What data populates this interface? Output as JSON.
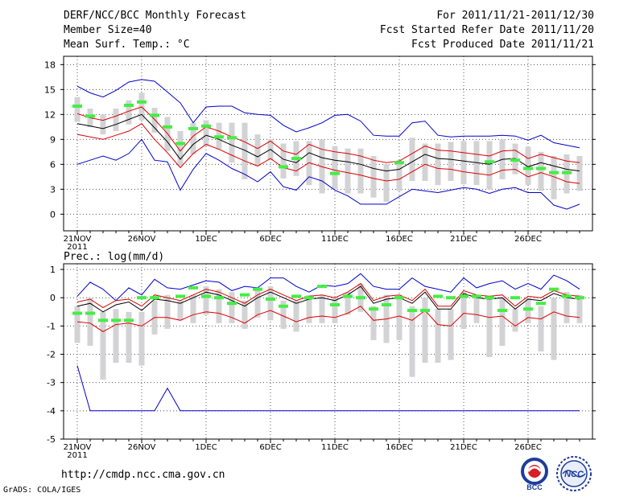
{
  "header": {
    "title": "DERF/NCC/BCC Monthly Forecast",
    "member_size": "Member Size=40",
    "variable": "Mean Surf. Temp.: °C",
    "period": "For 2011/11/21-2011/12/30",
    "fcst_started": "Fcst Started Refer Date 2011/11/20",
    "fcst_produced": "Fcst Produced Date 2011/11/21"
  },
  "footer": {
    "url": "http://cmdp.ncc.cma.gov.cn",
    "grads": "GrADS: COLA/IGES",
    "logo_bcc": "BCC",
    "logo_ncc": "NCC"
  },
  "colors": {
    "envelope": "#0000cc",
    "spread": "#dd0000",
    "mean": "#000000",
    "box": "#d3d3d6",
    "marker": "#44ee44"
  },
  "chart_data": [
    {
      "type": "line",
      "title": "Mean Surf. Temp.: °C",
      "ylim": [
        -2,
        19
      ],
      "yticks": [
        0,
        3,
        6,
        9,
        12,
        15,
        18
      ],
      "xtick_days": [
        0,
        5,
        10,
        15,
        20,
        25,
        30,
        35
      ],
      "xtick_labels": [
        "21NOV",
        "26NOV",
        "1DEC",
        "6DEC",
        "11DEC",
        "16DEC",
        "21DEC",
        "26DEC"
      ],
      "xtick_sublabel": "2011",
      "days": 40,
      "series": [
        {
          "name": "max",
          "values": [
            15.4,
            14.6,
            14.1,
            14.9,
            15.9,
            16.2,
            16.0,
            14.7,
            13.4,
            11.0,
            12.9,
            13.0,
            13.0,
            12.2,
            12.0,
            11.9,
            10.7,
            9.9,
            10.4,
            11.0,
            11.9,
            12.0,
            11.2,
            9.5,
            9.4,
            9.4,
            11.0,
            11.2,
            9.5,
            9.3,
            9.4,
            9.4,
            9.4,
            9.5,
            9.4,
            8.9,
            9.5,
            8.6,
            8.3,
            8.0
          ]
        },
        {
          "name": "upper",
          "values": [
            12.1,
            11.6,
            11.3,
            11.8,
            12.4,
            12.9,
            11.4,
            9.7,
            7.6,
            9.4,
            10.5,
            10.0,
            9.3,
            8.7,
            7.9,
            8.8,
            7.6,
            7.2,
            8.4,
            7.8,
            7.5,
            7.3,
            7.0,
            6.5,
            6.2,
            6.4,
            7.3,
            8.2,
            7.7,
            7.6,
            7.4,
            7.2,
            7.0,
            7.6,
            7.7,
            6.7,
            7.2,
            6.8,
            6.4,
            6.2
          ]
        },
        {
          "name": "mean",
          "values": [
            10.9,
            10.6,
            10.3,
            10.8,
            11.4,
            12.0,
            10.4,
            8.7,
            6.6,
            8.4,
            9.5,
            9.0,
            8.3,
            7.7,
            6.9,
            7.8,
            6.6,
            6.2,
            7.4,
            6.8,
            6.5,
            6.3,
            6.0,
            5.5,
            5.2,
            5.4,
            6.3,
            7.2,
            6.7,
            6.6,
            6.4,
            6.2,
            6.0,
            6.6,
            6.7,
            5.7,
            6.2,
            5.8,
            5.4,
            5.2
          ]
        },
        {
          "name": "lower",
          "values": [
            9.6,
            9.3,
            9.0,
            9.5,
            10.0,
            10.9,
            9.0,
            7.4,
            5.6,
            7.3,
            8.4,
            7.8,
            7.1,
            6.4,
            5.8,
            6.7,
            5.6,
            5.2,
            6.2,
            5.7,
            5.3,
            5.0,
            4.7,
            4.3,
            4.0,
            4.2,
            5.1,
            6.0,
            5.5,
            5.4,
            5.1,
            4.9,
            4.7,
            5.3,
            5.4,
            4.5,
            5.0,
            4.5,
            3.9,
            3.7
          ]
        },
        {
          "name": "min",
          "values": [
            6.0,
            6.5,
            7.0,
            6.5,
            7.3,
            9.0,
            6.5,
            6.3,
            2.9,
            5.4,
            7.3,
            6.5,
            5.5,
            4.8,
            3.9,
            5.1,
            3.3,
            2.9,
            4.5,
            4.0,
            2.9,
            2.2,
            1.2,
            1.2,
            1.2,
            2.1,
            3.0,
            2.8,
            2.6,
            2.9,
            3.2,
            3.0,
            2.5,
            3.0,
            3.2,
            2.6,
            2.6,
            1.1,
            0.6,
            1.2
          ]
        }
      ],
      "boxes": [
        [
          11.1,
          14.1
        ],
        [
          10.5,
          12.7
        ],
        [
          9.6,
          12.0
        ],
        [
          10.0,
          12.7
        ],
        [
          10.8,
          13.7
        ],
        [
          11.3,
          14.6
        ],
        [
          9.8,
          12.8
        ],
        [
          7.6,
          11.7
        ],
        [
          5.8,
          10.0
        ],
        [
          7.2,
          11.0
        ],
        [
          8.2,
          11.3
        ],
        [
          7.8,
          11.0
        ],
        [
          6.2,
          11.0
        ],
        [
          4.2,
          11.0
        ],
        [
          5.8,
          9.6
        ],
        [
          6.5,
          9.0
        ],
        [
          4.3,
          8.5
        ],
        [
          4.6,
          8.8
        ],
        [
          3.5,
          8.8
        ],
        [
          2.5,
          9.0
        ],
        [
          3.0,
          8.2
        ],
        [
          2.5,
          7.9
        ],
        [
          2.5,
          7.9
        ],
        [
          2.0,
          7.0
        ],
        [
          1.5,
          6.0
        ],
        [
          2.8,
          6.5
        ],
        [
          4.0,
          9.2
        ],
        [
          4.0,
          8.5
        ],
        [
          3.5,
          8.5
        ],
        [
          4.0,
          8.7
        ],
        [
          3.6,
          8.8
        ],
        [
          3.5,
          8.8
        ],
        [
          3.0,
          8.8
        ],
        [
          4.2,
          9.0
        ],
        [
          4.8,
          8.5
        ],
        [
          3.5,
          8.1
        ],
        [
          2.8,
          7.5
        ],
        [
          1.8,
          7.0
        ],
        [
          2.5,
          7.2
        ],
        [
          2.8,
          7.0
        ]
      ],
      "markers": [
        13.0,
        11.8,
        null,
        null,
        13.1,
        13.5,
        11.9,
        10.5,
        8.5,
        10.3,
        10.6,
        9.3,
        9.2,
        null,
        null,
        null,
        5.7,
        6.7,
        null,
        null,
        4.9,
        null,
        null,
        null,
        null,
        6.2,
        null,
        null,
        null,
        null,
        null,
        null,
        6.3,
        null,
        6.5,
        5.5,
        5.5,
        5.0,
        5.0,
        null
      ]
    },
    {
      "type": "line",
      "title": "Prec.: log(mm/d)",
      "ylim": [
        -5,
        1.2
      ],
      "yticks": [
        -5,
        -4,
        -3,
        -2,
        -1,
        0,
        1
      ],
      "xtick_days": [
        0,
        5,
        10,
        15,
        20,
        25,
        30,
        35
      ],
      "xtick_labels": [
        "21NOV",
        "26NOV",
        "1DEC",
        "6DEC",
        "11DEC",
        "16DEC",
        "21DEC",
        "26DEC"
      ],
      "xtick_sublabel": "2011",
      "days": 40,
      "series": [
        {
          "name": "max",
          "values": [
            0.05,
            0.55,
            0.3,
            -0.1,
            0.35,
            0.1,
            0.65,
            0.35,
            0.3,
            0.45,
            0.6,
            0.55,
            0.25,
            0.4,
            0.35,
            0.7,
            0.7,
            0.4,
            0.2,
            0.45,
            0.4,
            0.5,
            0.85,
            0.4,
            0.3,
            0.3,
            0.7,
            0.4,
            0.3,
            0.2,
            0.7,
            0.35,
            0.5,
            0.6,
            0.3,
            0.5,
            0.3,
            0.8,
            0.6,
            0.3
          ]
        },
        {
          "name": "upper",
          "values": [
            -0.15,
            -0.05,
            -0.35,
            -0.1,
            -0.05,
            -0.3,
            0.1,
            0.0,
            -0.1,
            0.1,
            0.3,
            0.2,
            0.0,
            -0.2,
            0.1,
            0.3,
            0.1,
            -0.1,
            0.05,
            0.1,
            0.0,
            0.2,
            0.5,
            -0.1,
            0.05,
            0.1,
            -0.1,
            0.3,
            -0.3,
            -0.3,
            0.25,
            0.1,
            0.05,
            0.1,
            -0.3,
            0.05,
            0.0,
            0.25,
            0.1,
            0.05
          ]
        },
        {
          "name": "mean",
          "values": [
            -0.3,
            -0.2,
            -0.5,
            -0.25,
            -0.15,
            -0.45,
            -0.05,
            -0.1,
            -0.2,
            0.0,
            0.2,
            0.1,
            -0.1,
            -0.3,
            0.0,
            0.2,
            0.0,
            -0.2,
            -0.05,
            0.0,
            -0.1,
            0.1,
            0.4,
            -0.2,
            -0.05,
            0.0,
            -0.2,
            0.2,
            -0.4,
            -0.4,
            0.15,
            0.0,
            -0.05,
            0.0,
            -0.4,
            -0.05,
            -0.1,
            0.15,
            0.0,
            -0.05
          ]
        },
        {
          "name": "lower",
          "values": [
            -0.85,
            -0.9,
            -1.2,
            -0.95,
            -0.9,
            -1.0,
            -0.7,
            -0.7,
            -0.8,
            -0.6,
            -0.5,
            -0.55,
            -0.7,
            -0.9,
            -0.6,
            -0.45,
            -0.65,
            -0.85,
            -0.7,
            -0.65,
            -0.7,
            -0.55,
            -0.3,
            -0.8,
            -0.75,
            -0.65,
            -0.8,
            -0.45,
            -0.95,
            -1.0,
            -0.55,
            -0.6,
            -0.7,
            -0.65,
            -1.0,
            -0.7,
            -0.75,
            -0.5,
            -0.65,
            -0.7
          ]
        },
        {
          "name": "min",
          "values": [
            -2.4,
            -4.0,
            -4.0,
            -4.0,
            -4.0,
            -4.0,
            -4.0,
            -3.2,
            -4.0,
            -4.0,
            -4.0,
            -4.0,
            -4.0,
            -4.0,
            -4.0,
            -4.0,
            -4.0,
            -4.0,
            -4.0,
            -4.0,
            -4.0,
            -4.0,
            -4.0,
            -4.0,
            -4.0,
            -4.0,
            -4.0,
            -4.0,
            -4.0,
            -4.0,
            -4.0,
            -4.0,
            -4.0,
            -4.0,
            -4.0,
            -4.0,
            -4.0,
            -4.0,
            -4.0,
            -4.0
          ]
        }
      ],
      "boxes": [
        [
          -1.6,
          -0.3
        ],
        [
          -1.7,
          0.0
        ],
        [
          -2.9,
          -0.5
        ],
        [
          -2.3,
          -0.4
        ],
        [
          -2.3,
          -0.5
        ],
        [
          -2.4,
          -0.5
        ],
        [
          -1.3,
          -0.1
        ],
        [
          -1.1,
          0.1
        ],
        [
          -0.8,
          -0.1
        ],
        [
          -0.9,
          0.1
        ],
        [
          -0.6,
          0.4
        ],
        [
          -0.9,
          0.3
        ],
        [
          -0.9,
          0.2
        ],
        [
          -1.1,
          -0.1
        ],
        [
          -0.7,
          0.3
        ],
        [
          -0.8,
          0.4
        ],
        [
          -1.1,
          -0.1
        ],
        [
          -1.2,
          -0.1
        ],
        [
          -0.9,
          0.1
        ],
        [
          -0.9,
          0.1
        ],
        [
          -0.9,
          0.0
        ],
        [
          -0.6,
          0.2
        ],
        [
          -0.5,
          0.5
        ],
        [
          -1.5,
          -0.3
        ],
        [
          -1.6,
          0.1
        ],
        [
          -1.5,
          0.1
        ],
        [
          -2.8,
          -0.3
        ],
        [
          -2.3,
          0.0
        ],
        [
          -2.3,
          -0.4
        ],
        [
          -2.2,
          -0.4
        ],
        [
          -1.1,
          0.2
        ],
        [
          -0.9,
          0.1
        ],
        [
          -2.1,
          0.0
        ],
        [
          -1.7,
          0.0
        ],
        [
          -1.2,
          -0.4
        ],
        [
          -0.9,
          0.0
        ],
        [
          -1.9,
          -0.3
        ],
        [
          -2.2,
          0.0
        ],
        [
          -0.9,
          0.2
        ],
        [
          -0.9,
          0.1
        ]
      ],
      "markers": [
        -0.55,
        -0.55,
        -0.8,
        -0.8,
        -0.8,
        0.0,
        0.0,
        null,
        0.05,
        0.35,
        0.05,
        0.0,
        -0.2,
        0.1,
        0.3,
        -0.05,
        -0.3,
        0.05,
        0.0,
        0.4,
        -0.25,
        0.05,
        0.0,
        -0.4,
        -0.25,
        0.0,
        -0.45,
        -0.45,
        0.05,
        0.0,
        0.05,
        0.05,
        0.0,
        -0.45,
        0.0,
        -0.4,
        -0.2,
        0.3,
        0.05,
        0.0
      ]
    }
  ]
}
